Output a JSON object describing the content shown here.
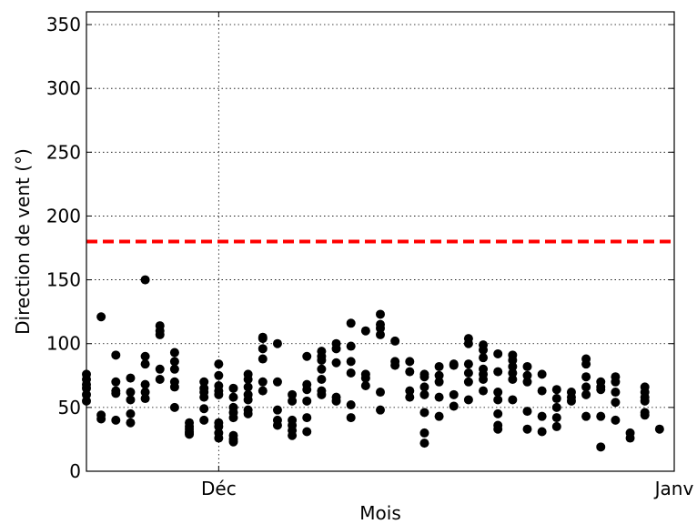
{
  "chart_data": {
    "type": "scatter",
    "title": "",
    "xlabel": "Mois",
    "ylabel": "Direction de vent (°)",
    "ylim": [
      0,
      360
    ],
    "yticks": [
      0,
      50,
      100,
      150,
      200,
      250,
      300,
      350
    ],
    "xlim": [
      "2015-11-22",
      "2016-01-01"
    ],
    "xticks": [
      {
        "date": "2015-12-01",
        "label": "Déc"
      },
      {
        "date": "2016-01-01",
        "label": "Janv"
      }
    ],
    "grid": true,
    "marker_color": "#000000",
    "reference_line": {
      "y": 180,
      "color": "#ff0000",
      "style": "dashed"
    },
    "series": [
      {
        "points": [
          [
            "2015-11-22",
            55
          ],
          [
            "2015-11-22",
            60
          ],
          [
            "2015-11-22",
            65
          ],
          [
            "2015-11-22",
            68
          ],
          [
            "2015-11-22",
            72
          ],
          [
            "2015-11-22",
            76
          ],
          [
            "2015-11-23",
            121
          ],
          [
            "2015-11-23",
            44
          ],
          [
            "2015-11-23",
            41
          ],
          [
            "2015-11-24",
            70
          ],
          [
            "2015-11-24",
            63
          ],
          [
            "2015-11-24",
            61
          ],
          [
            "2015-11-24",
            91
          ],
          [
            "2015-11-24",
            40
          ],
          [
            "2015-11-25",
            73
          ],
          [
            "2015-11-25",
            62
          ],
          [
            "2015-11-25",
            56
          ],
          [
            "2015-11-25",
            45
          ],
          [
            "2015-11-25",
            38
          ],
          [
            "2015-11-26",
            150
          ],
          [
            "2015-11-26",
            90
          ],
          [
            "2015-11-26",
            84
          ],
          [
            "2015-11-26",
            68
          ],
          [
            "2015-11-26",
            62
          ],
          [
            "2015-11-26",
            57
          ],
          [
            "2015-11-27",
            114
          ],
          [
            "2015-11-27",
            110
          ],
          [
            "2015-11-27",
            107
          ],
          [
            "2015-11-27",
            80
          ],
          [
            "2015-11-27",
            72
          ],
          [
            "2015-11-28",
            93
          ],
          [
            "2015-11-28",
            86
          ],
          [
            "2015-11-28",
            80
          ],
          [
            "2015-11-28",
            70
          ],
          [
            "2015-11-28",
            66
          ],
          [
            "2015-11-28",
            50
          ],
          [
            "2015-11-29",
            38
          ],
          [
            "2015-11-29",
            33
          ],
          [
            "2015-11-29",
            30
          ],
          [
            "2015-11-29",
            35
          ],
          [
            "2015-11-29",
            31
          ],
          [
            "2015-11-29",
            29
          ],
          [
            "2015-11-30",
            70
          ],
          [
            "2015-11-30",
            65
          ],
          [
            "2015-11-30",
            62
          ],
          [
            "2015-11-30",
            58
          ],
          [
            "2015-11-30",
            49
          ],
          [
            "2015-11-30",
            40
          ],
          [
            "2015-12-01",
            84
          ],
          [
            "2015-12-01",
            75
          ],
          [
            "2015-12-01",
            67
          ],
          [
            "2015-12-01",
            63
          ],
          [
            "2015-12-01",
            60
          ],
          [
            "2015-12-01",
            38
          ],
          [
            "2015-12-01",
            35
          ],
          [
            "2015-12-01",
            30
          ],
          [
            "2015-12-01",
            26
          ],
          [
            "2015-12-02",
            65
          ],
          [
            "2015-12-02",
            58
          ],
          [
            "2015-12-02",
            50
          ],
          [
            "2015-12-02",
            46
          ],
          [
            "2015-12-02",
            42
          ],
          [
            "2015-12-02",
            28
          ],
          [
            "2015-12-02",
            25
          ],
          [
            "2015-12-02",
            23
          ],
          [
            "2015-12-03",
            76
          ],
          [
            "2015-12-03",
            72
          ],
          [
            "2015-12-03",
            66
          ],
          [
            "2015-12-03",
            60
          ],
          [
            "2015-12-03",
            56
          ],
          [
            "2015-12-03",
            48
          ],
          [
            "2015-12-03",
            45
          ],
          [
            "2015-12-04",
            105
          ],
          [
            "2015-12-04",
            104
          ],
          [
            "2015-12-04",
            96
          ],
          [
            "2015-12-04",
            88
          ],
          [
            "2015-12-04",
            70
          ],
          [
            "2015-12-04",
            63
          ],
          [
            "2015-12-05",
            100
          ],
          [
            "2015-12-05",
            70
          ],
          [
            "2015-12-05",
            48
          ],
          [
            "2015-12-05",
            40
          ],
          [
            "2015-12-05",
            36
          ],
          [
            "2015-12-06",
            60
          ],
          [
            "2015-12-06",
            55
          ],
          [
            "2015-12-06",
            40
          ],
          [
            "2015-12-06",
            36
          ],
          [
            "2015-12-06",
            32
          ],
          [
            "2015-12-06",
            28
          ],
          [
            "2015-12-07",
            90
          ],
          [
            "2015-12-07",
            68
          ],
          [
            "2015-12-07",
            64
          ],
          [
            "2015-12-07",
            55
          ],
          [
            "2015-12-07",
            42
          ],
          [
            "2015-12-07",
            31
          ],
          [
            "2015-12-08",
            94
          ],
          [
            "2015-12-08",
            90
          ],
          [
            "2015-12-08",
            87
          ],
          [
            "2015-12-08",
            80
          ],
          [
            "2015-12-08",
            72
          ],
          [
            "2015-12-08",
            63
          ],
          [
            "2015-12-08",
            60
          ],
          [
            "2015-12-09",
            100
          ],
          [
            "2015-12-09",
            96
          ],
          [
            "2015-12-09",
            85
          ],
          [
            "2015-12-09",
            58
          ],
          [
            "2015-12-09",
            55
          ],
          [
            "2015-12-10",
            116
          ],
          [
            "2015-12-10",
            98
          ],
          [
            "2015-12-10",
            86
          ],
          [
            "2015-12-10",
            77
          ],
          [
            "2015-12-10",
            52
          ],
          [
            "2015-12-10",
            42
          ],
          [
            "2015-12-11",
            110
          ],
          [
            "2015-12-11",
            76
          ],
          [
            "2015-12-11",
            73
          ],
          [
            "2015-12-11",
            67
          ],
          [
            "2015-12-12",
            123
          ],
          [
            "2015-12-12",
            115
          ],
          [
            "2015-12-12",
            112
          ],
          [
            "2015-12-12",
            107
          ],
          [
            "2015-12-12",
            62
          ],
          [
            "2015-12-12",
            48
          ],
          [
            "2015-12-13",
            102
          ],
          [
            "2015-12-13",
            86
          ],
          [
            "2015-12-13",
            83
          ],
          [
            "2015-12-14",
            78
          ],
          [
            "2015-12-14",
            63
          ],
          [
            "2015-12-14",
            58
          ],
          [
            "2015-12-14",
            86
          ],
          [
            "2015-12-15",
            76
          ],
          [
            "2015-12-15",
            74
          ],
          [
            "2015-12-15",
            66
          ],
          [
            "2015-12-15",
            60
          ],
          [
            "2015-12-15",
            46
          ],
          [
            "2015-12-15",
            30
          ],
          [
            "2015-12-15",
            22
          ],
          [
            "2015-12-16",
            82
          ],
          [
            "2015-12-16",
            75
          ],
          [
            "2015-12-16",
            70
          ],
          [
            "2015-12-16",
            58
          ],
          [
            "2015-12-16",
            43
          ],
          [
            "2015-12-17",
            84
          ],
          [
            "2015-12-17",
            83
          ],
          [
            "2015-12-17",
            60
          ],
          [
            "2015-12-17",
            51
          ],
          [
            "2015-12-18",
            104
          ],
          [
            "2015-12-18",
            100
          ],
          [
            "2015-12-18",
            84
          ],
          [
            "2015-12-18",
            77
          ],
          [
            "2015-12-18",
            70
          ],
          [
            "2015-12-18",
            56
          ],
          [
            "2015-12-19",
            99
          ],
          [
            "2015-12-19",
            95
          ],
          [
            "2015-12-19",
            89
          ],
          [
            "2015-12-19",
            80
          ],
          [
            "2015-12-19",
            76
          ],
          [
            "2015-12-19",
            72
          ],
          [
            "2015-12-19",
            63
          ],
          [
            "2015-12-20",
            92
          ],
          [
            "2015-12-20",
            78
          ],
          [
            "2015-12-20",
            62
          ],
          [
            "2015-12-20",
            56
          ],
          [
            "2015-12-20",
            45
          ],
          [
            "2015-12-20",
            36
          ],
          [
            "2015-12-20",
            33
          ],
          [
            "2015-12-21",
            91
          ],
          [
            "2015-12-21",
            87
          ],
          [
            "2015-12-21",
            82
          ],
          [
            "2015-12-21",
            77
          ],
          [
            "2015-12-21",
            72
          ],
          [
            "2015-12-21",
            56
          ],
          [
            "2015-12-22",
            82
          ],
          [
            "2015-12-22",
            75
          ],
          [
            "2015-12-22",
            70
          ],
          [
            "2015-12-22",
            47
          ],
          [
            "2015-12-22",
            33
          ],
          [
            "2015-12-23",
            76
          ],
          [
            "2015-12-23",
            63
          ],
          [
            "2015-12-23",
            43
          ],
          [
            "2015-12-23",
            31
          ],
          [
            "2015-12-24",
            64
          ],
          [
            "2015-12-24",
            57
          ],
          [
            "2015-12-24",
            50
          ],
          [
            "2015-12-24",
            42
          ],
          [
            "2015-12-24",
            35
          ],
          [
            "2015-12-25",
            62
          ],
          [
            "2015-12-25",
            58
          ],
          [
            "2015-12-25",
            55
          ],
          [
            "2015-12-26",
            88
          ],
          [
            "2015-12-26",
            84
          ],
          [
            "2015-12-26",
            74
          ],
          [
            "2015-12-26",
            66
          ],
          [
            "2015-12-26",
            60
          ],
          [
            "2015-12-26",
            43
          ],
          [
            "2015-12-27",
            70
          ],
          [
            "2015-12-27",
            66
          ],
          [
            "2015-12-27",
            64
          ],
          [
            "2015-12-27",
            43
          ],
          [
            "2015-12-27",
            19
          ],
          [
            "2015-12-28",
            74
          ],
          [
            "2015-12-28",
            70
          ],
          [
            "2015-12-28",
            62
          ],
          [
            "2015-12-28",
            54
          ],
          [
            "2015-12-28",
            40
          ],
          [
            "2015-12-29",
            30
          ],
          [
            "2015-12-29",
            26
          ],
          [
            "2015-12-30",
            66
          ],
          [
            "2015-12-30",
            62
          ],
          [
            "2015-12-30",
            58
          ],
          [
            "2015-12-30",
            55
          ],
          [
            "2015-12-30",
            46
          ],
          [
            "2015-12-30",
            44
          ],
          [
            "2015-12-31",
            33
          ]
        ]
      }
    ]
  }
}
